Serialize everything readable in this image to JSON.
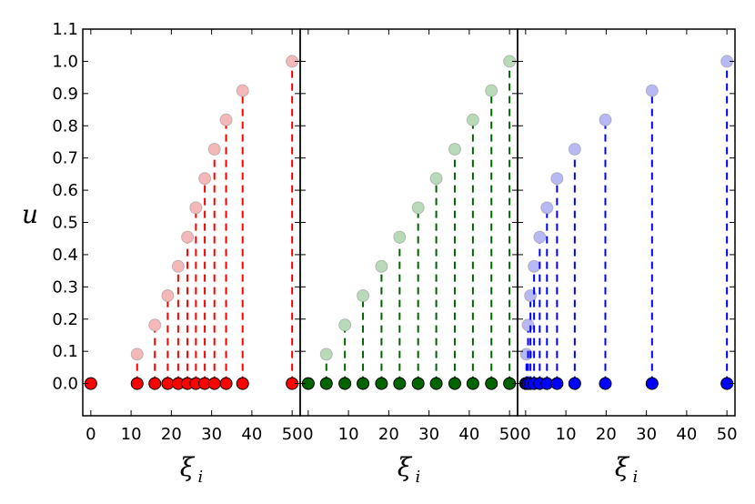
{
  "chart_data": {
    "type": "scatter",
    "ylabel": "u",
    "xlabel": "ξ",
    "xlabel_sub": "i",
    "ylim": [
      -0.1,
      1.1
    ],
    "xlim": [
      -2,
      52
    ],
    "yticks": [
      "0.0",
      "0.1",
      "0.2",
      "0.3",
      "0.4",
      "0.5",
      "0.6",
      "0.7",
      "0.8",
      "0.9",
      "1.0",
      "1.1"
    ],
    "xticks": [
      "0",
      "10",
      "20",
      "30",
      "40",
      "50"
    ],
    "grid": false,
    "panels": [
      {
        "color": "#ff0000",
        "light_color": "#f4b8b8",
        "xi": [
          0,
          11.5,
          15.9,
          19.1,
          21.7,
          24.0,
          26.1,
          28.3,
          30.7,
          33.6,
          37.7,
          50.0
        ],
        "u": [
          0.0,
          0.0909,
          0.1818,
          0.2727,
          0.3636,
          0.4545,
          0.5455,
          0.6364,
          0.7273,
          0.8182,
          0.9091,
          1.0
        ]
      },
      {
        "color": "#006400",
        "light_color": "#b9dab9",
        "xi": [
          0,
          4.5,
          9.1,
          13.6,
          18.2,
          22.7,
          27.3,
          31.8,
          36.4,
          40.9,
          45.5,
          50.0
        ],
        "u": [
          0.0,
          0.0909,
          0.1818,
          0.2727,
          0.3636,
          0.4545,
          0.5455,
          0.6364,
          0.7273,
          0.8182,
          0.9091,
          1.0
        ]
      },
      {
        "color": "#0000ff",
        "light_color": "#b8b8f4",
        "xi": [
          0,
          0.2,
          0.6,
          1.2,
          2.1,
          3.5,
          5.3,
          7.8,
          12.2,
          19.8,
          31.4,
          50.0
        ],
        "u": [
          0.0,
          0.0909,
          0.1818,
          0.2727,
          0.3636,
          0.4545,
          0.5455,
          0.6364,
          0.7273,
          0.8182,
          0.9091,
          1.0
        ]
      }
    ]
  }
}
